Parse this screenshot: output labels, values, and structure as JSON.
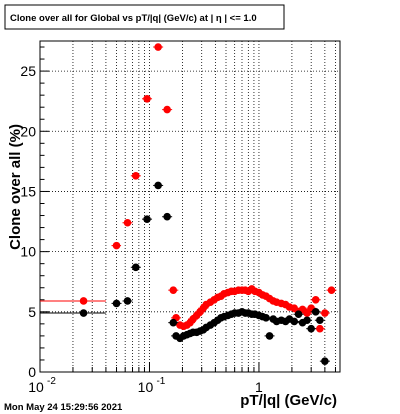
{
  "chart_data": {
    "type": "scatter",
    "title": "Clone  over all for Global vs pT/|q| (GeV/c) at |  η | <= 1.0",
    "xlabel": "pT/|q| (GeV/c)",
    "ylabel": "Clone  over all (%)",
    "xscale": "log",
    "xlim": [
      0.01,
      5.5
    ],
    "ylim": [
      0,
      27.5
    ],
    "x_ticks": [
      {
        "v": 0.01,
        "t": "10"
      },
      {
        "v": 0.1,
        "t": "10"
      },
      {
        "v": 1,
        "t": "1"
      }
    ],
    "x_tick_exponents": [
      "-2",
      "-1",
      ""
    ],
    "y_ticks": [
      0,
      5,
      10,
      15,
      20,
      25
    ],
    "grid": true,
    "timestamp": "Mon May 24 15:29:56 2021",
    "series": [
      {
        "color": "#ff0000",
        "points": [
          {
            "x": 0.025,
            "y": 5.9,
            "xlo": 0.01,
            "xhi": 0.04
          },
          {
            "x": 0.05,
            "y": 10.5,
            "xlo": 0.045,
            "xhi": 0.055
          },
          {
            "x": 0.063,
            "y": 12.4
          },
          {
            "x": 0.075,
            "y": 16.3
          },
          {
            "x": 0.095,
            "y": 22.7
          },
          {
            "x": 0.12,
            "y": 27.0
          },
          {
            "x": 0.145,
            "y": 21.8
          },
          {
            "x": 0.165,
            "y": 6.8
          },
          {
            "x": 0.175,
            "y": 4.5
          },
          {
            "x": 0.19,
            "y": 3.9
          },
          {
            "x": 0.205,
            "y": 3.8
          },
          {
            "x": 0.22,
            "y": 3.9
          },
          {
            "x": 0.235,
            "y": 4.1
          },
          {
            "x": 0.25,
            "y": 4.4
          },
          {
            "x": 0.27,
            "y": 4.7
          },
          {
            "x": 0.29,
            "y": 5.0
          },
          {
            "x": 0.31,
            "y": 5.3
          },
          {
            "x": 0.33,
            "y": 5.6
          },
          {
            "x": 0.36,
            "y": 5.8
          },
          {
            "x": 0.39,
            "y": 6.0
          },
          {
            "x": 0.42,
            "y": 6.2
          },
          {
            "x": 0.45,
            "y": 6.3
          },
          {
            "x": 0.48,
            "y": 6.5
          },
          {
            "x": 0.52,
            "y": 6.6
          },
          {
            "x": 0.56,
            "y": 6.7
          },
          {
            "x": 0.6,
            "y": 6.7
          },
          {
            "x": 0.65,
            "y": 6.8
          },
          {
            "x": 0.7,
            "y": 6.8
          },
          {
            "x": 0.75,
            "y": 6.8
          },
          {
            "x": 0.8,
            "y": 6.7
          },
          {
            "x": 0.86,
            "y": 6.9
          },
          {
            "x": 0.92,
            "y": 6.7
          },
          {
            "x": 1.0,
            "y": 6.6
          },
          {
            "x": 1.08,
            "y": 6.4
          },
          {
            "x": 1.16,
            "y": 6.3
          },
          {
            "x": 1.25,
            "y": 6.1
          },
          {
            "x": 1.35,
            "y": 5.9
          },
          {
            "x": 1.45,
            "y": 5.8
          },
          {
            "x": 1.6,
            "y": 5.7
          },
          {
            "x": 1.75,
            "y": 5.6
          },
          {
            "x": 1.9,
            "y": 5.4
          },
          {
            "x": 2.1,
            "y": 5.3
          },
          {
            "x": 2.3,
            "y": 5.0
          },
          {
            "x": 2.5,
            "y": 5.2
          },
          {
            "x": 2.75,
            "y": 4.9
          },
          {
            "x": 3.0,
            "y": 5.3
          },
          {
            "x": 3.3,
            "y": 6.0
          },
          {
            "x": 3.6,
            "y": 3.6
          },
          {
            "x": 4.0,
            "y": 4.9
          },
          {
            "x": 4.6,
            "y": 6.8
          }
        ]
      },
      {
        "color": "#000000",
        "points": [
          {
            "x": 0.025,
            "y": 4.9,
            "xlo": 0.01,
            "xhi": 0.04
          },
          {
            "x": 0.05,
            "y": 5.7
          },
          {
            "x": 0.063,
            "y": 5.9
          },
          {
            "x": 0.075,
            "y": 8.7
          },
          {
            "x": 0.095,
            "y": 12.7
          },
          {
            "x": 0.12,
            "y": 15.5
          },
          {
            "x": 0.145,
            "y": 12.9
          },
          {
            "x": 0.165,
            "y": 4.1
          },
          {
            "x": 0.175,
            "y": 3.0
          },
          {
            "x": 0.19,
            "y": 2.8
          },
          {
            "x": 0.205,
            "y": 3.0
          },
          {
            "x": 0.22,
            "y": 3.1
          },
          {
            "x": 0.235,
            "y": 3.2
          },
          {
            "x": 0.25,
            "y": 3.3
          },
          {
            "x": 0.27,
            "y": 3.3
          },
          {
            "x": 0.29,
            "y": 3.4
          },
          {
            "x": 0.31,
            "y": 3.5
          },
          {
            "x": 0.33,
            "y": 3.7
          },
          {
            "x": 0.36,
            "y": 3.9
          },
          {
            "x": 0.39,
            "y": 4.1
          },
          {
            "x": 0.42,
            "y": 4.3
          },
          {
            "x": 0.45,
            "y": 4.5
          },
          {
            "x": 0.48,
            "y": 4.6
          },
          {
            "x": 0.52,
            "y": 4.7
          },
          {
            "x": 0.56,
            "y": 4.8
          },
          {
            "x": 0.6,
            "y": 4.9
          },
          {
            "x": 0.65,
            "y": 4.9
          },
          {
            "x": 0.7,
            "y": 5.0
          },
          {
            "x": 0.75,
            "y": 4.9
          },
          {
            "x": 0.8,
            "y": 4.9
          },
          {
            "x": 0.86,
            "y": 4.8
          },
          {
            "x": 0.92,
            "y": 4.8
          },
          {
            "x": 1.0,
            "y": 4.7
          },
          {
            "x": 1.08,
            "y": 4.6
          },
          {
            "x": 1.16,
            "y": 4.5
          },
          {
            "x": 1.25,
            "y": 3.0
          },
          {
            "x": 1.35,
            "y": 4.4
          },
          {
            "x": 1.45,
            "y": 4.2
          },
          {
            "x": 1.6,
            "y": 4.3
          },
          {
            "x": 1.75,
            "y": 4.2
          },
          {
            "x": 1.9,
            "y": 4.4
          },
          {
            "x": 2.1,
            "y": 4.2
          },
          {
            "x": 2.3,
            "y": 4.8
          },
          {
            "x": 2.5,
            "y": 4.1
          },
          {
            "x": 2.75,
            "y": 4.3
          },
          {
            "x": 3.0,
            "y": 3.6
          },
          {
            "x": 3.3,
            "y": 5.0
          },
          {
            "x": 3.6,
            "y": 4.3
          },
          {
            "x": 4.0,
            "y": 0.9
          }
        ]
      }
    ]
  }
}
